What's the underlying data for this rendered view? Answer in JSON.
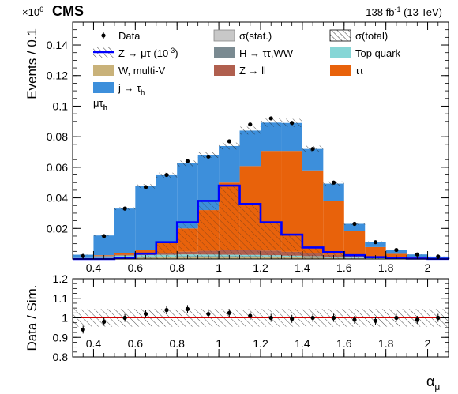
{
  "header": {
    "cms_label": "CMS",
    "multiplier": "×10",
    "multiplier_exp": "6",
    "lumi": "138 fb",
    "lumi_exp": "-1",
    "energy": "(13 TeV)"
  },
  "colors": {
    "data": "#000000",
    "signal": "#0000ff",
    "W_multiV": "#c9b27a",
    "H_tautau_WW": "#7a8a91",
    "Z_ll": "#b05f4e",
    "top": "#86d6d6",
    "tautau": "#e8620b",
    "j_tau": "#3d8fdb",
    "stat": "#c8c8c8"
  },
  "chart_data": [
    {
      "type": "bar",
      "ylabel": "Events / 0.1",
      "ylim": [
        0,
        0.155
      ],
      "xlim": [
        0.3,
        2.1
      ],
      "y_scale_label": "×10^6",
      "yticks": [
        0.02,
        0.04,
        0.06,
        0.08,
        0.1,
        0.12,
        0.14
      ],
      "category_label": "μτ_h",
      "bin_edges": [
        0.3,
        0.4,
        0.5,
        0.6,
        0.7,
        0.8,
        0.9,
        1.0,
        1.1,
        1.2,
        1.3,
        1.4,
        1.5,
        1.6,
        1.7,
        1.8,
        1.9,
        2.0,
        2.1
      ],
      "legend": [
        {
          "key": "data",
          "label": "Data"
        },
        {
          "key": "stat",
          "label": "σ(stat.)"
        },
        {
          "key": "total",
          "label": "σ(total)"
        },
        {
          "key": "signal",
          "label": "Z → μτ (10",
          "sup": "-3",
          "suffix": ")"
        },
        {
          "key": "H_tautau_WW",
          "label": "H → ττ,WW"
        },
        {
          "key": "top",
          "label": "Top quark"
        },
        {
          "key": "W_multiV",
          "label": "W, multi-V"
        },
        {
          "key": "Z_ll",
          "label": "Z → ll"
        },
        {
          "key": "tautau",
          "label": "ττ"
        },
        {
          "key": "j_tau",
          "label": "j → τ",
          "sub": "h"
        }
      ],
      "series": [
        {
          "name": "W, multi-V",
          "key": "W_multiV",
          "values": [
            0.0002,
            0.0004,
            0.0006,
            0.0008,
            0.001,
            0.0012,
            0.0012,
            0.0012,
            0.0012,
            0.0012,
            0.001,
            0.0008,
            0.0006,
            0.0004,
            0.0003,
            0.0002,
            0.0001,
            0.0001
          ]
        },
        {
          "name": "H → ττ,WW",
          "key": "H_tautau_WW",
          "values": [
            0.0001,
            0.0002,
            0.0003,
            0.0004,
            0.0005,
            0.0006,
            0.0006,
            0.0006,
            0.0006,
            0.0005,
            0.0005,
            0.0004,
            0.0003,
            0.0002,
            0.0001,
            0.0001,
            0.0,
            0.0
          ]
        },
        {
          "name": "Top quark",
          "key": "top",
          "values": [
            0.0008,
            0.0012,
            0.0014,
            0.0014,
            0.0013,
            0.0012,
            0.0011,
            0.001,
            0.0009,
            0.0008,
            0.0007,
            0.0006,
            0.0005,
            0.0004,
            0.0003,
            0.0002,
            0.0002,
            0.0001
          ]
        },
        {
          "name": "Z → ll",
          "key": "Z_ll",
          "values": [
            0.0002,
            0.0003,
            0.0005,
            0.0008,
            0.0012,
            0.0018,
            0.0025,
            0.003,
            0.0032,
            0.003,
            0.0025,
            0.002,
            0.0014,
            0.001,
            0.0006,
            0.0004,
            0.0002,
            0.0001
          ]
        },
        {
          "name": "ττ",
          "key": "tautau",
          "values": [
            0.0002,
            0.0004,
            0.001,
            0.0026,
            0.0072,
            0.0152,
            0.0266,
            0.0442,
            0.0549,
            0.0652,
            0.066,
            0.0542,
            0.0352,
            0.0162,
            0.0065,
            0.0025,
            0.001,
            0.0004
          ]
        },
        {
          "name": "j → τh",
          "key": "j_tau",
          "values": [
            0.0013,
            0.0129,
            0.0292,
            0.0416,
            0.0436,
            0.0425,
            0.0362,
            0.0239,
            0.0232,
            0.0185,
            0.0183,
            0.014,
            0.0113,
            0.0048,
            0.0034,
            0.0026,
            0.0015,
            0.0009
          ]
        }
      ],
      "total_mc": [
        0.0028,
        0.0154,
        0.033,
        0.0476,
        0.0548,
        0.0625,
        0.0682,
        0.0739,
        0.084,
        0.0892,
        0.089,
        0.072,
        0.0493,
        0.023,
        0.0112,
        0.006,
        0.003,
        0.0016
      ],
      "signal_x1000": [
        0.0,
        0.0,
        0.0005,
        0.0035,
        0.011,
        0.024,
        0.038,
        0.048,
        0.036,
        0.024,
        0.016,
        0.0075,
        0.0045,
        0.0025,
        0.0012,
        0.0006,
        0.0003,
        0.0001
      ],
      "signal_on_top": [
        0,
        0,
        0,
        0,
        0,
        0,
        1,
        1,
        0,
        0,
        0,
        0,
        0,
        0,
        0,
        0,
        0,
        0
      ],
      "data_points": [
        0.002,
        0.015,
        0.033,
        0.047,
        0.055,
        0.064,
        0.067,
        0.077,
        0.088,
        0.092,
        0.089,
        0.072,
        0.05,
        0.023,
        0.011,
        0.0059,
        0.003,
        0.0016
      ]
    },
    {
      "type": "scatter",
      "xlabel": "α",
      "xlabel_sub": "μ",
      "ylabel": "Data / Sim.",
      "ylim": [
        0.8,
        1.2
      ],
      "xlim": [
        0.3,
        2.1
      ],
      "yticks": [
        0.8,
        0.9,
        1.0,
        1.1,
        1.2
      ],
      "xticks": [
        0.4,
        0.6,
        0.8,
        1.0,
        1.2,
        1.4,
        1.6,
        1.8,
        2.0
      ],
      "ratio": [
        0.94,
        0.98,
        1.0,
        1.02,
        1.04,
        1.045,
        1.02,
        1.025,
        1.01,
        1.0,
        0.995,
        1.0,
        1.0,
        0.99,
        0.985,
        1.0,
        0.99,
        1.0
      ],
      "band": [
        0.955,
        1.045
      ],
      "reference_line": 1.0
    }
  ]
}
